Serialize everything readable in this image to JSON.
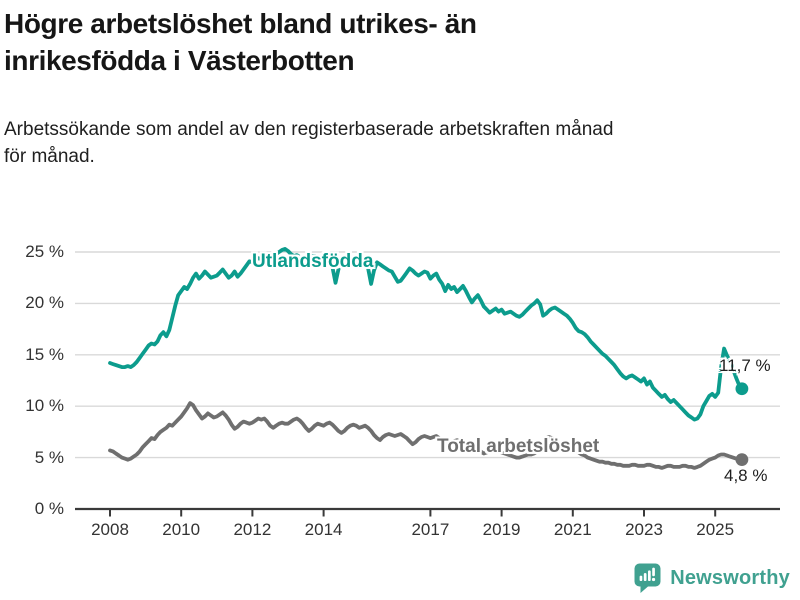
{
  "header": {
    "title": "Högre arbetslöshet bland utrikes- än\ninrikesfödda i Västerbotten",
    "subtitle": "Arbetssökande som andel av den registerbaserade arbetskraften månad\nför månad."
  },
  "footer": {
    "brand": "Newsworthy"
  },
  "colors": {
    "foreign_line": "#0c9c8d",
    "total_line": "#6f6f6f",
    "grid": "#d9d9d9",
    "axis": "#3a3a3a",
    "brand": "#40a190",
    "text": "#1a1a1a"
  },
  "chart_data": {
    "type": "line",
    "title": "Högre arbetslöshet bland utrikes- än inrikesfödda i Västerbotten",
    "subtitle": "Arbetssökande som andel av den registerbaserade arbetskraften månad för månad.",
    "x_unit": "month",
    "x_start": "2008-01",
    "x_end": "2025-10",
    "ylim": [
      0,
      25
    ],
    "grid": "horizontal",
    "legend_position": "on-line",
    "yticks": [
      {
        "label": "0 %",
        "value": 0
      },
      {
        "label": "5 %",
        "value": 5
      },
      {
        "label": "10 %",
        "value": 10
      },
      {
        "label": "15 %",
        "value": 15
      },
      {
        "label": "20 %",
        "value": 20
      },
      {
        "label": "25 %",
        "value": 25
      }
    ],
    "xticks": [
      {
        "label": "2008",
        "year": 2008
      },
      {
        "label": "2010",
        "year": 2010
      },
      {
        "label": "2012",
        "year": 2012
      },
      {
        "label": "2014",
        "year": 2014
      },
      {
        "label": "2017",
        "year": 2017
      },
      {
        "label": "2019",
        "year": 2019
      },
      {
        "label": "2021",
        "year": 2021
      },
      {
        "label": "2023",
        "year": 2023
      },
      {
        "label": "2025",
        "year": 2025
      }
    ],
    "series": [
      {
        "name": "Utlandsfödda",
        "color": "#0c9c8d",
        "end_label": "11,7 %",
        "end_value": 11.7,
        "values": [
          14.2,
          14.1,
          14.0,
          13.9,
          13.8,
          13.8,
          13.9,
          13.8,
          14.0,
          14.3,
          14.7,
          15.1,
          15.5,
          15.9,
          16.1,
          16.0,
          16.3,
          16.9,
          17.2,
          16.8,
          17.4,
          18.6,
          19.8,
          20.8,
          21.2,
          21.6,
          21.4,
          21.9,
          22.5,
          22.9,
          22.4,
          22.7,
          23.1,
          22.8,
          22.5,
          22.6,
          22.7,
          23.0,
          23.3,
          22.9,
          22.5,
          22.7,
          23.1,
          22.6,
          22.9,
          23.3,
          23.7,
          24.1,
          24.0,
          24.2,
          24.4,
          24.3,
          24.5,
          24.6,
          24.4,
          24.6,
          24.8,
          25.0,
          25.2,
          25.3,
          25.1,
          24.8,
          24.6,
          24.7,
          24.5,
          24.4,
          24.3,
          24.5,
          24.6,
          24.6,
          24.5,
          24.4,
          24.4,
          24.5,
          24.3,
          23.5,
          22.0,
          23.3,
          24.2,
          24.4,
          24.5,
          24.4,
          24.5,
          24.4,
          24.4,
          24.5,
          24.3,
          23.4,
          21.9,
          23.2,
          24.0,
          23.8,
          23.6,
          23.4,
          23.2,
          23.1,
          22.6,
          22.1,
          22.2,
          22.6,
          23.0,
          23.4,
          23.2,
          22.9,
          22.7,
          22.9,
          23.1,
          23.0,
          22.4,
          22.7,
          22.9,
          22.3,
          21.9,
          21.2,
          21.8,
          21.4,
          21.6,
          21.1,
          21.4,
          21.7,
          21.2,
          20.6,
          20.1,
          20.5,
          20.8,
          20.3,
          19.7,
          19.4,
          19.1,
          19.3,
          19.5,
          19.2,
          19.4,
          19.0,
          19.1,
          19.2,
          19.0,
          18.8,
          18.7,
          18.9,
          19.2,
          19.5,
          19.8,
          20.0,
          20.3,
          19.9,
          18.8,
          19.0,
          19.3,
          19.5,
          19.6,
          19.4,
          19.2,
          19.0,
          18.8,
          18.5,
          18.1,
          17.6,
          17.3,
          17.2,
          17.0,
          16.7,
          16.3,
          16.0,
          15.7,
          15.4,
          15.1,
          14.9,
          14.6,
          14.3,
          14.0,
          13.6,
          13.2,
          12.9,
          12.7,
          12.9,
          13.0,
          12.8,
          12.6,
          12.4,
          12.7,
          12.1,
          12.4,
          11.8,
          11.5,
          11.2,
          10.9,
          11.1,
          10.7,
          10.4,
          10.6,
          10.3,
          10.0,
          9.7,
          9.4,
          9.1,
          8.9,
          8.7,
          8.8,
          9.2,
          10.0,
          10.5,
          11.0,
          11.2,
          10.9,
          11.3,
          13.8,
          15.6,
          14.9,
          14.4,
          13.6,
          12.8,
          12.1,
          11.7
        ]
      },
      {
        "name": "Total arbetslöshet",
        "color": "#6f6f6f",
        "end_label": "4,8 %",
        "end_value": 4.8,
        "values": [
          5.7,
          5.6,
          5.4,
          5.2,
          5.0,
          4.9,
          4.8,
          4.9,
          5.1,
          5.3,
          5.6,
          6.0,
          6.3,
          6.6,
          6.9,
          6.8,
          7.2,
          7.5,
          7.7,
          7.9,
          8.2,
          8.1,
          8.4,
          8.7,
          9.0,
          9.4,
          9.8,
          10.3,
          10.1,
          9.6,
          9.2,
          8.8,
          9.0,
          9.3,
          9.1,
          8.9,
          9.0,
          9.2,
          9.4,
          9.1,
          8.7,
          8.2,
          7.8,
          8.0,
          8.3,
          8.5,
          8.4,
          8.3,
          8.4,
          8.6,
          8.8,
          8.7,
          8.8,
          8.5,
          8.1,
          7.9,
          8.1,
          8.3,
          8.4,
          8.3,
          8.3,
          8.5,
          8.7,
          8.8,
          8.6,
          8.3,
          7.9,
          7.6,
          7.8,
          8.1,
          8.3,
          8.2,
          8.1,
          8.3,
          8.4,
          8.2,
          7.9,
          7.6,
          7.4,
          7.6,
          7.9,
          8.1,
          8.2,
          8.1,
          7.9,
          8.0,
          8.1,
          7.9,
          7.6,
          7.2,
          6.9,
          6.7,
          7.0,
          7.2,
          7.3,
          7.2,
          7.1,
          7.2,
          7.3,
          7.1,
          6.9,
          6.6,
          6.3,
          6.5,
          6.8,
          7.0,
          7.1,
          7.0,
          6.9,
          7.0,
          7.1,
          6.9,
          6.6,
          6.4,
          6.2,
          6.4,
          6.6,
          6.7,
          6.6,
          6.5,
          6.4,
          6.3,
          6.2,
          6.0,
          5.8,
          5.6,
          5.4,
          5.5,
          5.7,
          5.8,
          5.7,
          5.6,
          5.5,
          5.4,
          5.3,
          5.2,
          5.1,
          5.0,
          5.0,
          5.1,
          5.2,
          5.3,
          5.3,
          5.4,
          5.6,
          5.9,
          6.4,
          6.9,
          7.0,
          6.9,
          6.7,
          6.5,
          6.3,
          6.1,
          5.9,
          5.8,
          5.7,
          5.6,
          5.5,
          5.3,
          5.2,
          5.0,
          4.9,
          4.8,
          4.7,
          4.6,
          4.6,
          4.5,
          4.5,
          4.4,
          4.4,
          4.3,
          4.3,
          4.2,
          4.2,
          4.2,
          4.3,
          4.3,
          4.2,
          4.2,
          4.2,
          4.3,
          4.3,
          4.2,
          4.1,
          4.1,
          4.0,
          4.1,
          4.2,
          4.2,
          4.1,
          4.1,
          4.1,
          4.2,
          4.2,
          4.1,
          4.1,
          4.0,
          4.1,
          4.2,
          4.4,
          4.6,
          4.8,
          4.9,
          5.0,
          5.2,
          5.3,
          5.3,
          5.2,
          5.1,
          5.0,
          4.9,
          4.8,
          4.8
        ]
      }
    ]
  }
}
